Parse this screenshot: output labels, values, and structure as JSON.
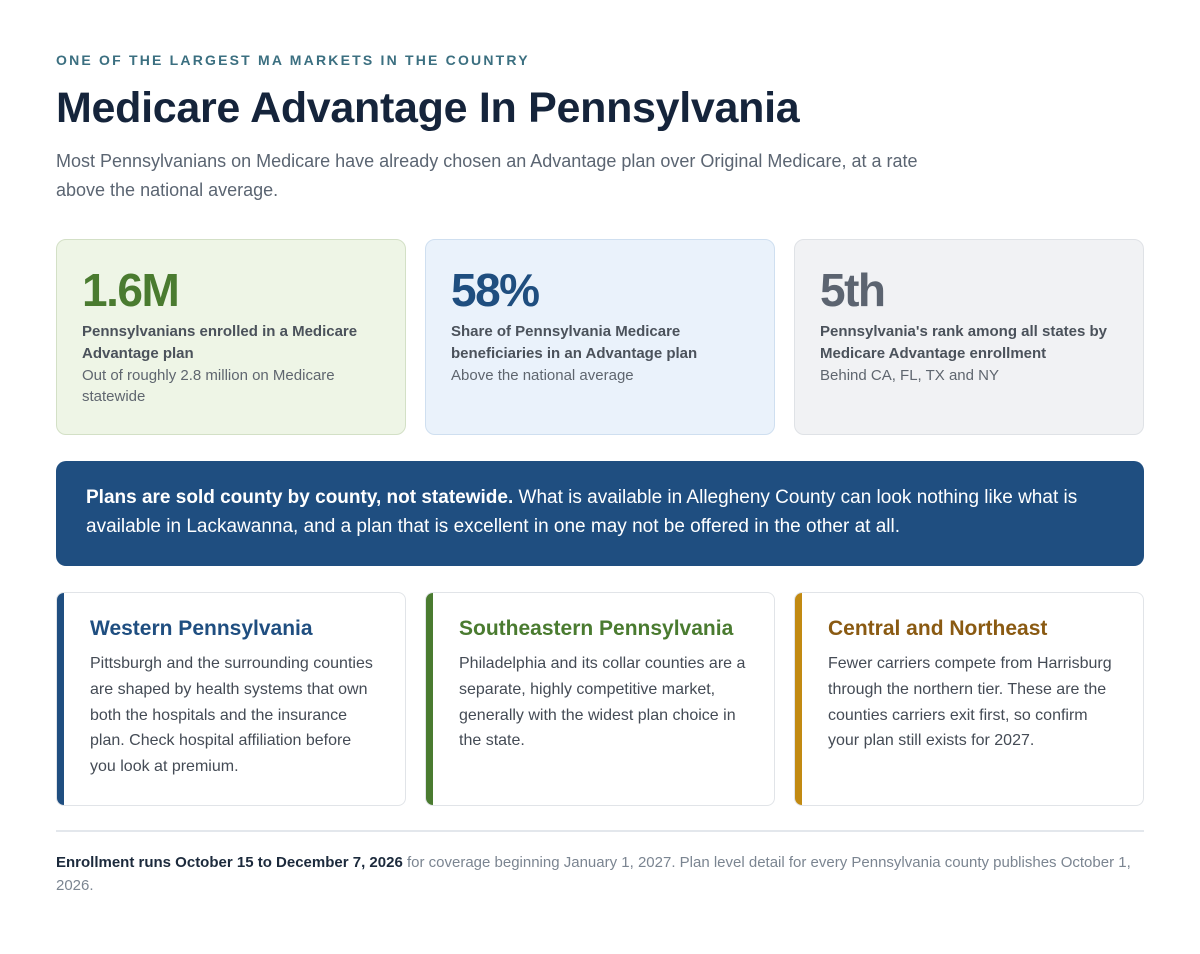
{
  "header": {
    "eyebrow": "ONE OF THE LARGEST MA MARKETS IN THE COUNTRY",
    "title": "Medicare Advantage In Pennsylvania",
    "lede": "Most Pennsylvanians on Medicare have already chosen an Advantage plan over Original Medicare, at a rate above the national average."
  },
  "stats": [
    {
      "value": "1.6M",
      "label": "Pennsylvanians enrolled in a Medicare Advantage plan",
      "note": "Out of roughly 2.8 million on Medicare statewide"
    },
    {
      "value": "58%",
      "label": "Share of Pennsylvania Medicare beneficiaries in an Advantage plan",
      "note": "Above the national average"
    },
    {
      "value": "5th",
      "label": "Pennsylvania's rank among all states by Medicare Advantage enrollment",
      "note": "Behind CA, FL, TX and NY"
    }
  ],
  "banner": {
    "lead": "Plans are sold county by county, not statewide.",
    "text": " What is available in Allegheny County can look nothing like what is available in Lackawanna, and a plan that is excellent in one may not be offered in the other at all."
  },
  "regions": [
    {
      "title": "Western Pennsylvania",
      "body": "Pittsburgh and the surrounding counties are shaped by health systems that own both the hospitals and the insurance plan. Check hospital affiliation before you look at premium."
    },
    {
      "title": "Southeastern Pennsylvania",
      "body": "Philadelphia and its collar counties are a separate, highly competitive market, generally with the widest plan choice in the state."
    },
    {
      "title": "Central and Northeast",
      "body": "Fewer carriers compete from Harrisburg through the northern tier. These are the counties carriers exit first, so confirm your plan still exists for 2027."
    }
  ],
  "footer": {
    "lead": "Enrollment runs October 15 to December 7, 2026",
    "text": " for coverage beginning January 1, 2027. Plan level detail for every Pennsylvania county publishes October 1, 2026."
  },
  "colors": {
    "accent_blue": "#1f4e80",
    "accent_green": "#4a7b30",
    "accent_gold": "#c28a12",
    "title": "#15243b"
  }
}
